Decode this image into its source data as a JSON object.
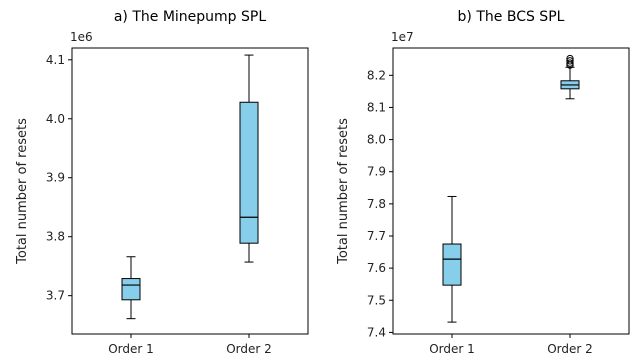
{
  "colors": {
    "box_fill": "#87ceeb",
    "stroke": "#000000",
    "background": "#ffffff"
  },
  "chart_data": [
    {
      "type": "box",
      "title": "a) The Minepump SPL",
      "ylabel": "Total number of resets",
      "multiplier_label": "1e6",
      "ylim": [
        3.635,
        4.12
      ],
      "yticks": [
        3.7,
        3.8,
        3.9,
        4.0,
        4.1
      ],
      "ytick_labels": [
        "3.7",
        "3.8",
        "3.9",
        "4.0",
        "4.1"
      ],
      "categories": [
        "Order 1",
        "Order 2"
      ],
      "boxes": [
        {
          "whislo": 3.661,
          "q1": 3.693,
          "med": 3.718,
          "q3": 3.729,
          "whishi": 3.766,
          "fliers": []
        },
        {
          "whislo": 3.757,
          "q1": 3.789,
          "med": 3.833,
          "q3": 4.028,
          "whishi": 4.108,
          "fliers": []
        }
      ]
    },
    {
      "type": "box",
      "title": "b) The BCS SPL",
      "ylabel": "Total number of resets",
      "multiplier_label": "1e7",
      "ylim": [
        7.395,
        8.285
      ],
      "yticks": [
        7.4,
        7.5,
        7.6,
        7.7,
        7.8,
        7.9,
        8.0,
        8.1,
        8.2
      ],
      "ytick_labels": [
        "7.4",
        "7.5",
        "7.6",
        "7.7",
        "7.8",
        "7.9",
        "8.0",
        "8.1",
        "8.2"
      ],
      "categories": [
        "Order 1",
        "Order 2"
      ],
      "boxes": [
        {
          "whislo": 7.432,
          "q1": 7.547,
          "med": 7.628,
          "q3": 7.675,
          "whishi": 7.823,
          "fliers": []
        },
        {
          "whislo": 8.127,
          "q1": 8.158,
          "med": 8.17,
          "q3": 8.183,
          "whishi": 8.225,
          "fliers": [
            8.232,
            8.238,
            8.245,
            8.252
          ]
        }
      ]
    }
  ]
}
